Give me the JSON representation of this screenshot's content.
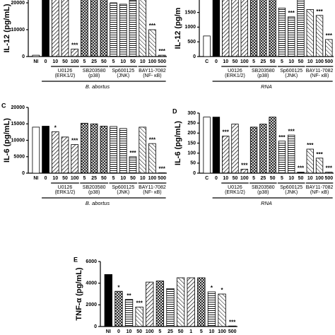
{
  "chart_data": [
    {
      "type": "bar",
      "ylabel": "IL-12 (pg/mL)",
      "categories": [
        "NI",
        "0",
        "10",
        "50",
        "100",
        "5",
        "25",
        "50",
        "5",
        "10",
        "50",
        "10",
        "100",
        "500"
      ],
      "values": [
        500,
        24000,
        23000,
        23000,
        2800,
        23000,
        23000,
        23000,
        20000,
        19500,
        21000,
        21500,
        10000,
        500
      ],
      "colors": [
        "#ffffff",
        "#000000",
        "#ffffff",
        "#ffffff",
        "#ffffff",
        "#ffffff",
        "#ffffff",
        "#ffffff",
        "#ffffff",
        "#ffffff",
        "#ffffff",
        "#ffffff",
        "#ffffff",
        "#ffffff"
      ],
      "annotations": [
        null,
        null,
        null,
        null,
        "***",
        null,
        null,
        null,
        null,
        null,
        "***",
        null,
        "***",
        "***"
      ],
      "ylim": [
        0,
        25000
      ],
      "yticks": [
        0,
        10000,
        20000
      ],
      "groups": [
        {
          "label": "U0126",
          "sub": "(ERK1/2)",
          "start": 2,
          "end": 4
        },
        {
          "label": "SB203580",
          "sub": "(p38)",
          "start": 5,
          "end": 7
        },
        {
          "label": "Sp600125",
          "sub": "(JNK)",
          "start": 8,
          "end": 10
        },
        {
          "label": "BAY11-7082",
          "sub": "(NF- κB)",
          "start": 11,
          "end": 13
        }
      ],
      "xlabel": "B. abortus"
    },
    {
      "type": "bar",
      "ylabel": "IL-12 (pg/m",
      "categories": [
        "C",
        "0",
        "10",
        "50",
        "100",
        "5",
        "25",
        "50",
        "5",
        "10",
        "50",
        "10",
        "100",
        "500"
      ],
      "values": [
        700,
        2400,
        2400,
        2400,
        2400,
        2400,
        2400,
        2400,
        1650,
        1350,
        2300,
        1600,
        1400,
        580
      ],
      "colors": [
        "#ffffff",
        "#000000",
        "#ffffff",
        "#ffffff",
        "#ffffff",
        "#ffffff",
        "#ffffff",
        "#ffffff",
        "#ffffff",
        "#ffffff",
        "#ffffff",
        "#ffffff",
        "#ffffff",
        "#ffffff"
      ],
      "annotations": [
        null,
        null,
        null,
        null,
        null,
        null,
        null,
        null,
        null,
        "***",
        null,
        null,
        "***",
        "***"
      ],
      "ylim": [
        0,
        2500
      ],
      "yticks": [
        0,
        500,
        1000,
        1500,
        2000
      ],
      "groups": [
        {
          "label": "U0126",
          "sub": "(ERK1/2)",
          "start": 2,
          "end": 4
        },
        {
          "label": "SB203580",
          "sub": "(p38)",
          "start": 5,
          "end": 7
        },
        {
          "label": "Sp600125",
          "sub": "(JNK)",
          "start": 8,
          "end": 10
        },
        {
          "label": "BAY11-7082",
          "sub": "(NF- κB)",
          "start": 11,
          "end": 13
        }
      ],
      "xlabel": "RNA"
    },
    {
      "type": "bar",
      "panel": "C",
      "ylabel": "IL-6 (pg/mL)",
      "categories": [
        "NI",
        "0",
        "10",
        "50",
        "100",
        "5",
        "25",
        "50",
        "5",
        "10",
        "50",
        "10",
        "100",
        "500"
      ],
      "values": [
        14000,
        14300,
        12600,
        11000,
        8700,
        15200,
        15000,
        14300,
        14200,
        13600,
        5000,
        14000,
        9000,
        100
      ],
      "colors": [
        "#ffffff",
        "#000000",
        "#ffffff",
        "#ffffff",
        "#ffffff",
        "#ffffff",
        "#ffffff",
        "#ffffff",
        "#ffffff",
        "#ffffff",
        "#ffffff",
        "#ffffff",
        "#ffffff",
        "#ffffff"
      ],
      "annotations": [
        null,
        null,
        "*",
        null,
        "***",
        null,
        null,
        null,
        null,
        null,
        "***",
        null,
        "***",
        "***"
      ],
      "ylim": [
        0,
        20000
      ],
      "yticks": [
        0,
        5000,
        10000,
        15000,
        20000
      ],
      "groups": [
        {
          "label": "U0126",
          "sub": "(ERK1/2)",
          "start": 2,
          "end": 4
        },
        {
          "label": "SB203580",
          "sub": "(p38)",
          "start": 5,
          "end": 7
        },
        {
          "label": "Sp600125",
          "sub": "(JNK)",
          "start": 8,
          "end": 10
        },
        {
          "label": "BAY11-7082",
          "sub": "(NF- κB)",
          "start": 11,
          "end": 13
        }
      ],
      "xlabel": "B. abortus"
    },
    {
      "type": "bar",
      "panel": "D",
      "ylabel": "IL-6 (pg/mL)",
      "categories": [
        "C",
        "0",
        "10",
        "50",
        "100",
        "5",
        "25",
        "50",
        "5",
        "10",
        "50",
        "10",
        "100",
        "500"
      ],
      "values": [
        280,
        280,
        185,
        245,
        20,
        230,
        245,
        280,
        160,
        190,
        5,
        120,
        75,
        5
      ],
      "colors": [
        "#ffffff",
        "#000000",
        "#ffffff",
        "#ffffff",
        "#ffffff",
        "#ffffff",
        "#ffffff",
        "#ffffff",
        "#ffffff",
        "#ffffff",
        "#ffffff",
        "#ffffff",
        "#ffffff",
        "#ffffff"
      ],
      "annotations": [
        null,
        null,
        "***",
        null,
        "***",
        null,
        null,
        null,
        "***",
        "***",
        "***",
        "***",
        "***",
        "***"
      ],
      "ylim": [
        0,
        300
      ],
      "yticks": [
        0,
        50,
        100,
        150,
        200,
        250,
        300
      ],
      "groups": [
        {
          "label": "U0126",
          "sub": "(ERK1/2)",
          "start": 2,
          "end": 4
        },
        {
          "label": "SB203580",
          "sub": "(p38)",
          "start": 5,
          "end": 7
        },
        {
          "label": "Sp600125",
          "sub": "(JNK)",
          "start": 8,
          "end": 10
        },
        {
          "label": "BAY11-7082",
          "sub": "(NF- κB)",
          "start": 11,
          "end": 13
        }
      ],
      "xlabel": "RNA"
    },
    {
      "type": "bar",
      "panel": "E",
      "ylabel": "TNF-α (pg/mL)",
      "categories": [
        "NI",
        "0",
        "10",
        "50",
        "100",
        "5",
        "25",
        "50",
        "1",
        "5",
        "10",
        "100",
        "500"
      ],
      "values": [
        4800,
        3250,
        2500,
        1800,
        4100,
        4200,
        3500,
        4500,
        4500,
        4500,
        3200,
        3000,
        50
      ],
      "colors": [
        "#000000",
        "#ffffff",
        "#ffffff",
        "#ffffff",
        "#ffffff",
        "#ffffff",
        "#ffffff",
        "#ffffff",
        "#ffffff",
        "#ffffff",
        "#ffffff",
        "#ffffff",
        "#ffffff"
      ],
      "annotations": [
        null,
        "*",
        "**",
        "***",
        null,
        null,
        null,
        null,
        null,
        null,
        "*",
        "*",
        "***"
      ],
      "ylim": [
        0,
        6000
      ],
      "yticks": [
        0,
        2000,
        4000,
        6000
      ]
    }
  ]
}
